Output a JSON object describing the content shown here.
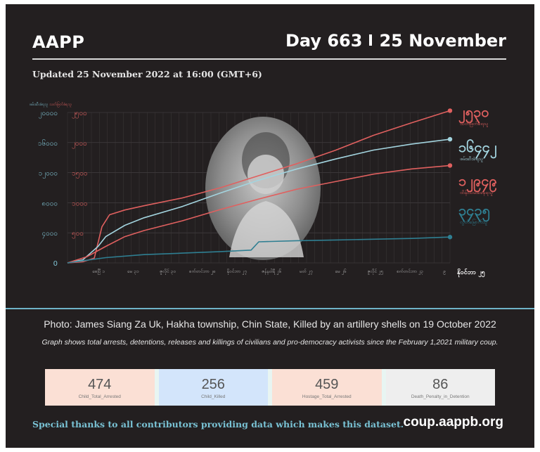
{
  "header": {
    "brand": "AAPP",
    "day": "Day 663",
    "date": "25 November",
    "updated": "Updated 25 November 2022 at 16:00 (GMT+6)"
  },
  "chart_data": {
    "type": "line",
    "left_axis_caption_teal": "ဖမ်းဆီးခံရသူ",
    "left_axis_caption_red": "သတ်ဖြတ်ခံရသူ",
    "ytick_labels_teal": [
      "၂၀၀၀၀",
      "၁၆၀၀၀",
      "၁၂၀၀၀",
      "၈၀၀၀",
      "၄၀၀၀",
      "0"
    ],
    "ytick_labels_red": [
      "၂၅၀၀",
      "၂၀၀၀",
      "၁၅၀၀",
      "၁၀၀၀",
      "၅၀၀"
    ],
    "xtick_labels": [
      "စေပြီ ၁",
      "မေ ၃၁",
      "ဇူလိုင် ၃၀",
      "စက်တင်ဘာ ၂၈",
      "နိုဝင်ဘာ ၂၇",
      "ဇန်နဝါရီ ၂၆",
      "မတ် ၂၇",
      "မေ ၂၆",
      "ဇူလိုင် ၂၅",
      "စက်တင်ဘာ ၂၃",
      "၉"
    ],
    "x_end_label": "နိုဝင်ဘာ ၂၅",
    "ylim_left": [
      0,
      20000
    ],
    "ylim_right": [
      0,
      2500
    ],
    "grid": true,
    "series": [
      {
        "name": "သတ်ဖြတ်ခံရသူ",
        "value_label": "၂၅၃၀",
        "color": "#e0605f",
        "axis": "right",
        "x_frac": [
          0,
          0.04,
          0.07,
          0.09,
          0.11,
          0.15,
          0.2,
          0.3,
          0.4,
          0.5,
          0.6,
          0.7,
          0.8,
          0.9,
          1.0
        ],
        "values": [
          0,
          20,
          80,
          600,
          800,
          880,
          950,
          1080,
          1250,
          1450,
          1650,
          1870,
          2120,
          2330,
          2530
        ]
      },
      {
        "name": "ဖမ်းဆီးခံရသူ",
        "value_label": "၁၆၄၄၂",
        "color": "#a3d4df",
        "axis": "left",
        "x_frac": [
          0,
          0.04,
          0.08,
          0.1,
          0.15,
          0.2,
          0.3,
          0.4,
          0.5,
          0.6,
          0.7,
          0.8,
          0.9,
          1.0
        ],
        "values": [
          0,
          400,
          2200,
          3500,
          5000,
          6000,
          7500,
          9300,
          11000,
          12500,
          13800,
          15000,
          15800,
          16442
        ]
      },
      {
        "name": "ထိန်းသိမ်းခံနေရသူ",
        "value_label": "၁၂၉၄၉",
        "color": "#e0605f",
        "axis": "left",
        "x_frac": [
          0,
          0.05,
          0.1,
          0.15,
          0.2,
          0.3,
          0.4,
          0.5,
          0.6,
          0.7,
          0.8,
          0.9,
          1.0
        ],
        "values": [
          0,
          800,
          2200,
          3500,
          4300,
          5600,
          7100,
          8500,
          9800,
          10800,
          11800,
          12500,
          12949
        ]
      },
      {
        "name": "လွတ်မြောက်သူ",
        "value_label": "၃၄၃၅",
        "color": "#2f7f92",
        "axis": "left",
        "x_frac": [
          0,
          0.1,
          0.2,
          0.3,
          0.4,
          0.48,
          0.5,
          0.6,
          0.7,
          0.8,
          0.9,
          1.0
        ],
        "values": [
          0,
          700,
          1100,
          1300,
          1500,
          1700,
          2800,
          2950,
          3050,
          3150,
          3250,
          3435
        ]
      }
    ]
  },
  "captions": {
    "photo": "Photo: James Siang Za Uk, Hakha township, Chin State, Killed by an artillery shells on 19 October 2022",
    "graph": "Graph shows total arrests, detentions, releases and killings of civilians and pro-democracy activists since the February 1,2021 military coup."
  },
  "stats": [
    {
      "value": "474",
      "label": "Child_Total_Arrested",
      "color": "#fbe0d5"
    },
    {
      "value": "256",
      "label": "Child_Killed",
      "color": "#d3e5fb"
    },
    {
      "value": "459",
      "label": "Hostage_Total_Arrested",
      "color": "#fbe0d5"
    },
    {
      "value": "86",
      "label": "Death_Penalty_in_Detention",
      "color": "#eeeeee"
    }
  ],
  "footer": {
    "thanks": "Special thanks to all contributors providing data which makes this dataset.",
    "url": "coup.aappb.org"
  }
}
